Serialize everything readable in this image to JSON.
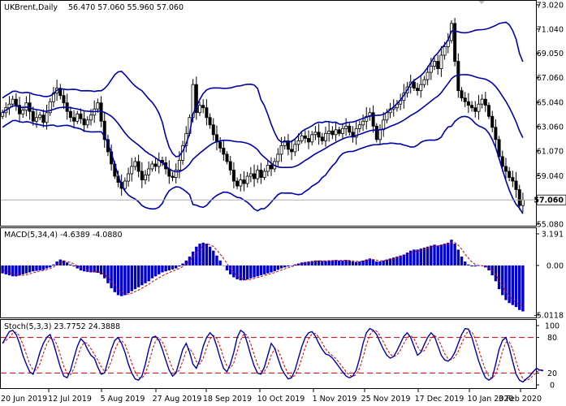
{
  "chart_data": {
    "type": "candlestick",
    "colors": {
      "candle": "#000000",
      "bands": "#0000aa",
      "histogram": "#0000cc",
      "signal": "#cc0000",
      "stoch_main": "#0000aa",
      "stoch_signal": "#cc0000",
      "levels": "#cc0000",
      "price_marker": "#aaaaaa"
    },
    "main": {
      "title": "UKBrent,Daily",
      "ohlc_values": "56.470 57.060 55.960 57.060",
      "indicator": "Bollinger Bands",
      "ylim": [
        55.08,
        73.02
      ],
      "yticks": [
        "73.020",
        "71.040",
        "69.050",
        "67.060",
        "65.040",
        "63.060",
        "61.070",
        "59.040",
        "57.060",
        "55.080"
      ],
      "current_price": "57.060",
      "close_series": [
        64.2,
        64.6,
        64.9,
        65.3,
        64.8,
        64.1,
        64.4,
        65.0,
        64.3,
        63.5,
        63.8,
        64.0,
        63.4,
        64.2,
        65.1,
        65.8,
        66.2,
        65.6,
        65.0,
        64.3,
        63.8,
        63.5,
        64.1,
        63.7,
        63.2,
        63.6,
        64.0,
        64.5,
        65.0,
        63.5,
        62.0,
        61.0,
        60.0,
        59.0,
        58.5,
        58.0,
        58.6,
        59.2,
        59.8,
        60.2,
        59.4,
        58.7,
        59.1,
        59.6,
        60.0,
        59.8,
        60.3,
        60.1,
        59.6,
        59.0,
        58.9,
        59.5,
        60.3,
        61.5,
        62.5,
        63.8,
        66.5,
        64.2,
        64.8,
        64.6,
        63.8,
        63.2,
        62.4,
        61.8,
        61.3,
        60.8,
        60.2,
        59.5,
        58.6,
        58.2,
        58.7,
        58.4,
        59.0,
        59.2,
        58.8,
        59.5,
        58.9,
        59.4,
        59.9,
        59.6,
        60.2,
        60.8,
        61.5,
        61.9,
        61.2,
        61.0,
        61.6,
        61.9,
        62.3,
        62.1,
        61.8,
        62.4,
        62.6,
        62.2,
        61.9,
        62.5,
        62.7,
        62.4,
        62.8,
        62.5,
        62.9,
        63.1,
        62.6,
        62.2,
        62.9,
        63.2,
        63.5,
        63.9,
        64.2,
        63.1,
        62.0,
        62.8,
        63.6,
        64.2,
        64.5,
        64.6,
        64.9,
        65.2,
        65.8,
        66.3,
        66.7,
        66.2,
        66.0,
        66.5,
        66.9,
        67.5,
        68.0,
        68.4,
        67.8,
        68.9,
        69.6,
        70.1,
        71.5,
        68.4,
        66.0,
        65.4,
        65.1,
        64.8,
        64.6,
        64.3,
        64.9,
        65.3,
        64.8,
        63.9,
        63.0,
        62.0,
        60.6,
        59.8,
        59.4,
        58.9,
        58.6,
        57.9,
        56.6,
        57.06
      ],
      "x_date_labels": [
        "20 Jun 2019",
        "12 Jul 2019",
        "5 Aug 2019",
        "27 Aug 2019",
        "18 Sep 2019",
        "10 Oct 2019",
        "1 Nov 2019",
        "25 Nov 2019",
        "17 Dec 2019",
        "10 Jan 2020",
        "3 Feb 2020"
      ]
    },
    "macd": {
      "label": "MACD(5,34,4) -4.6389 -4.0880",
      "ylim": [
        -5.0118,
        3.191
      ],
      "yticks": [
        "3.191",
        "0.00",
        "-5.0118"
      ],
      "histogram": [
        -0.8,
        -0.9,
        -1.0,
        -1.1,
        -1.1,
        -1.0,
        -0.9,
        -0.8,
        -0.7,
        -0.6,
        -0.55,
        -0.5,
        -0.45,
        -0.3,
        -0.2,
        0.1,
        0.4,
        0.6,
        0.5,
        0.3,
        0.1,
        -0.1,
        -0.3,
        -0.5,
        -0.6,
        -0.65,
        -0.7,
        -0.7,
        -0.75,
        -0.9,
        -1.3,
        -1.8,
        -2.3,
        -2.7,
        -3.0,
        -3.1,
        -3.0,
        -2.8,
        -2.6,
        -2.4,
        -2.2,
        -2.0,
        -1.8,
        -1.6,
        -1.3,
        -1.1,
        -0.9,
        -0.7,
        -0.6,
        -0.5,
        -0.4,
        -0.3,
        -0.1,
        0.2,
        0.5,
        0.9,
        1.4,
        1.9,
        2.2,
        2.3,
        2.2,
        1.9,
        1.5,
        1.0,
        0.5,
        0.0,
        -0.5,
        -0.9,
        -1.2,
        -1.4,
        -1.5,
        -1.5,
        -1.4,
        -1.3,
        -1.2,
        -1.1,
        -1.0,
        -0.9,
        -0.8,
        -0.7,
        -0.6,
        -0.45,
        -0.3,
        -0.2,
        -0.1,
        0.0,
        0.1,
        0.2,
        0.3,
        0.35,
        0.4,
        0.45,
        0.5,
        0.5,
        0.45,
        0.45,
        0.5,
        0.5,
        0.55,
        0.5,
        0.5,
        0.55,
        0.5,
        0.4,
        0.35,
        0.4,
        0.5,
        0.6,
        0.7,
        0.6,
        0.4,
        0.4,
        0.5,
        0.6,
        0.7,
        0.8,
        0.9,
        1.0,
        1.1,
        1.3,
        1.5,
        1.6,
        1.6,
        1.7,
        1.8,
        1.9,
        2.0,
        2.1,
        2.0,
        2.1,
        2.2,
        2.3,
        2.6,
        2.2,
        1.6,
        0.9,
        0.4,
        0.1,
        -0.1,
        -0.1,
        0.0,
        0.0,
        -0.2,
        -0.5,
        -1.0,
        -1.6,
        -2.4,
        -3.0,
        -3.5,
        -3.8,
        -4.0,
        -4.2,
        -4.5,
        -4.64
      ],
      "signal": [
        -0.4,
        -0.55,
        -0.7,
        -0.85,
        -0.95,
        -1.0,
        -1.0,
        -0.95,
        -0.85,
        -0.75,
        -0.65,
        -0.57,
        -0.5,
        -0.42,
        -0.32,
        -0.15,
        0.05,
        0.25,
        0.4,
        0.4,
        0.3,
        0.15,
        -0.05,
        -0.2,
        -0.35,
        -0.48,
        -0.57,
        -0.63,
        -0.68,
        -0.75,
        -0.9,
        -1.2,
        -1.6,
        -2.0,
        -2.4,
        -2.7,
        -2.85,
        -2.9,
        -2.8,
        -2.65,
        -2.5,
        -2.3,
        -2.1,
        -1.9,
        -1.65,
        -1.45,
        -1.25,
        -1.05,
        -0.88,
        -0.72,
        -0.58,
        -0.45,
        -0.3,
        -0.1,
        0.15,
        0.45,
        0.85,
        1.3,
        1.7,
        2.0,
        2.15,
        2.1,
        1.9,
        1.55,
        1.15,
        0.7,
        0.2,
        -0.3,
        -0.7,
        -1.05,
        -1.3,
        -1.45,
        -1.45,
        -1.4,
        -1.32,
        -1.22,
        -1.12,
        -1.02,
        -0.92,
        -0.82,
        -0.72,
        -0.6,
        -0.47,
        -0.35,
        -0.23,
        -0.12,
        -0.02,
        0.08,
        0.17,
        0.25,
        0.32,
        0.38,
        0.43,
        0.46,
        0.47,
        0.47,
        0.48,
        0.49,
        0.51,
        0.51,
        0.51,
        0.52,
        0.51,
        0.47,
        0.42,
        0.4,
        0.43,
        0.5,
        0.58,
        0.6,
        0.53,
        0.47,
        0.48,
        0.53,
        0.6,
        0.68,
        0.77,
        0.86,
        0.95,
        1.08,
        1.23,
        1.38,
        1.47,
        1.55,
        1.65,
        1.75,
        1.85,
        1.95,
        1.99,
        2.03,
        2.09,
        2.16,
        2.33,
        2.31,
        2.05,
        1.64,
        1.15,
        0.72,
        0.35,
        0.1,
        0.0,
        -0.03,
        -0.09,
        -0.24,
        -0.52,
        -0.92,
        -1.5,
        -2.1,
        -2.65,
        -3.1,
        -3.45,
        -3.7,
        -3.95,
        -4.09
      ]
    },
    "stoch": {
      "label": "Stoch(5,3,3) 23.7752 24.3888",
      "ylim": [
        0,
        100
      ],
      "yticks": [
        "100",
        "80",
        "20",
        "0"
      ],
      "levels": [
        80,
        20
      ],
      "main": [
        70,
        80,
        90,
        92,
        85,
        70,
        50,
        35,
        22,
        18,
        35,
        55,
        70,
        80,
        85,
        70,
        50,
        30,
        15,
        12,
        25,
        45,
        65,
        78,
        72,
        60,
        50,
        45,
        30,
        18,
        20,
        40,
        60,
        75,
        80,
        70,
        55,
        35,
        20,
        10,
        8,
        15,
        35,
        60,
        80,
        82,
        75,
        60,
        42,
        25,
        15,
        20,
        40,
        60,
        70,
        55,
        35,
        28,
        42,
        65,
        80,
        88,
        82,
        65,
        45,
        28,
        22,
        35,
        55,
        80,
        92,
        88,
        70,
        50,
        32,
        20,
        18,
        30,
        50,
        70,
        62,
        45,
        28,
        18,
        10,
        12,
        25,
        45,
        65,
        80,
        88,
        90,
        82,
        70,
        60,
        52,
        50,
        45,
        38,
        30,
        22,
        15,
        12,
        15,
        25,
        45,
        70,
        88,
        95,
        92,
        85,
        72,
        60,
        50,
        45,
        48,
        58,
        70,
        82,
        88,
        80,
        65,
        50,
        55,
        68,
        80,
        88,
        82,
        66,
        50,
        42,
        40,
        45,
        55,
        70,
        85,
        95,
        94,
        80,
        60,
        40,
        25,
        12,
        8,
        12,
        35,
        60,
        75,
        80,
        62,
        40,
        18,
        8,
        5,
        10,
        15,
        22,
        28,
        25,
        24
      ]
    }
  }
}
